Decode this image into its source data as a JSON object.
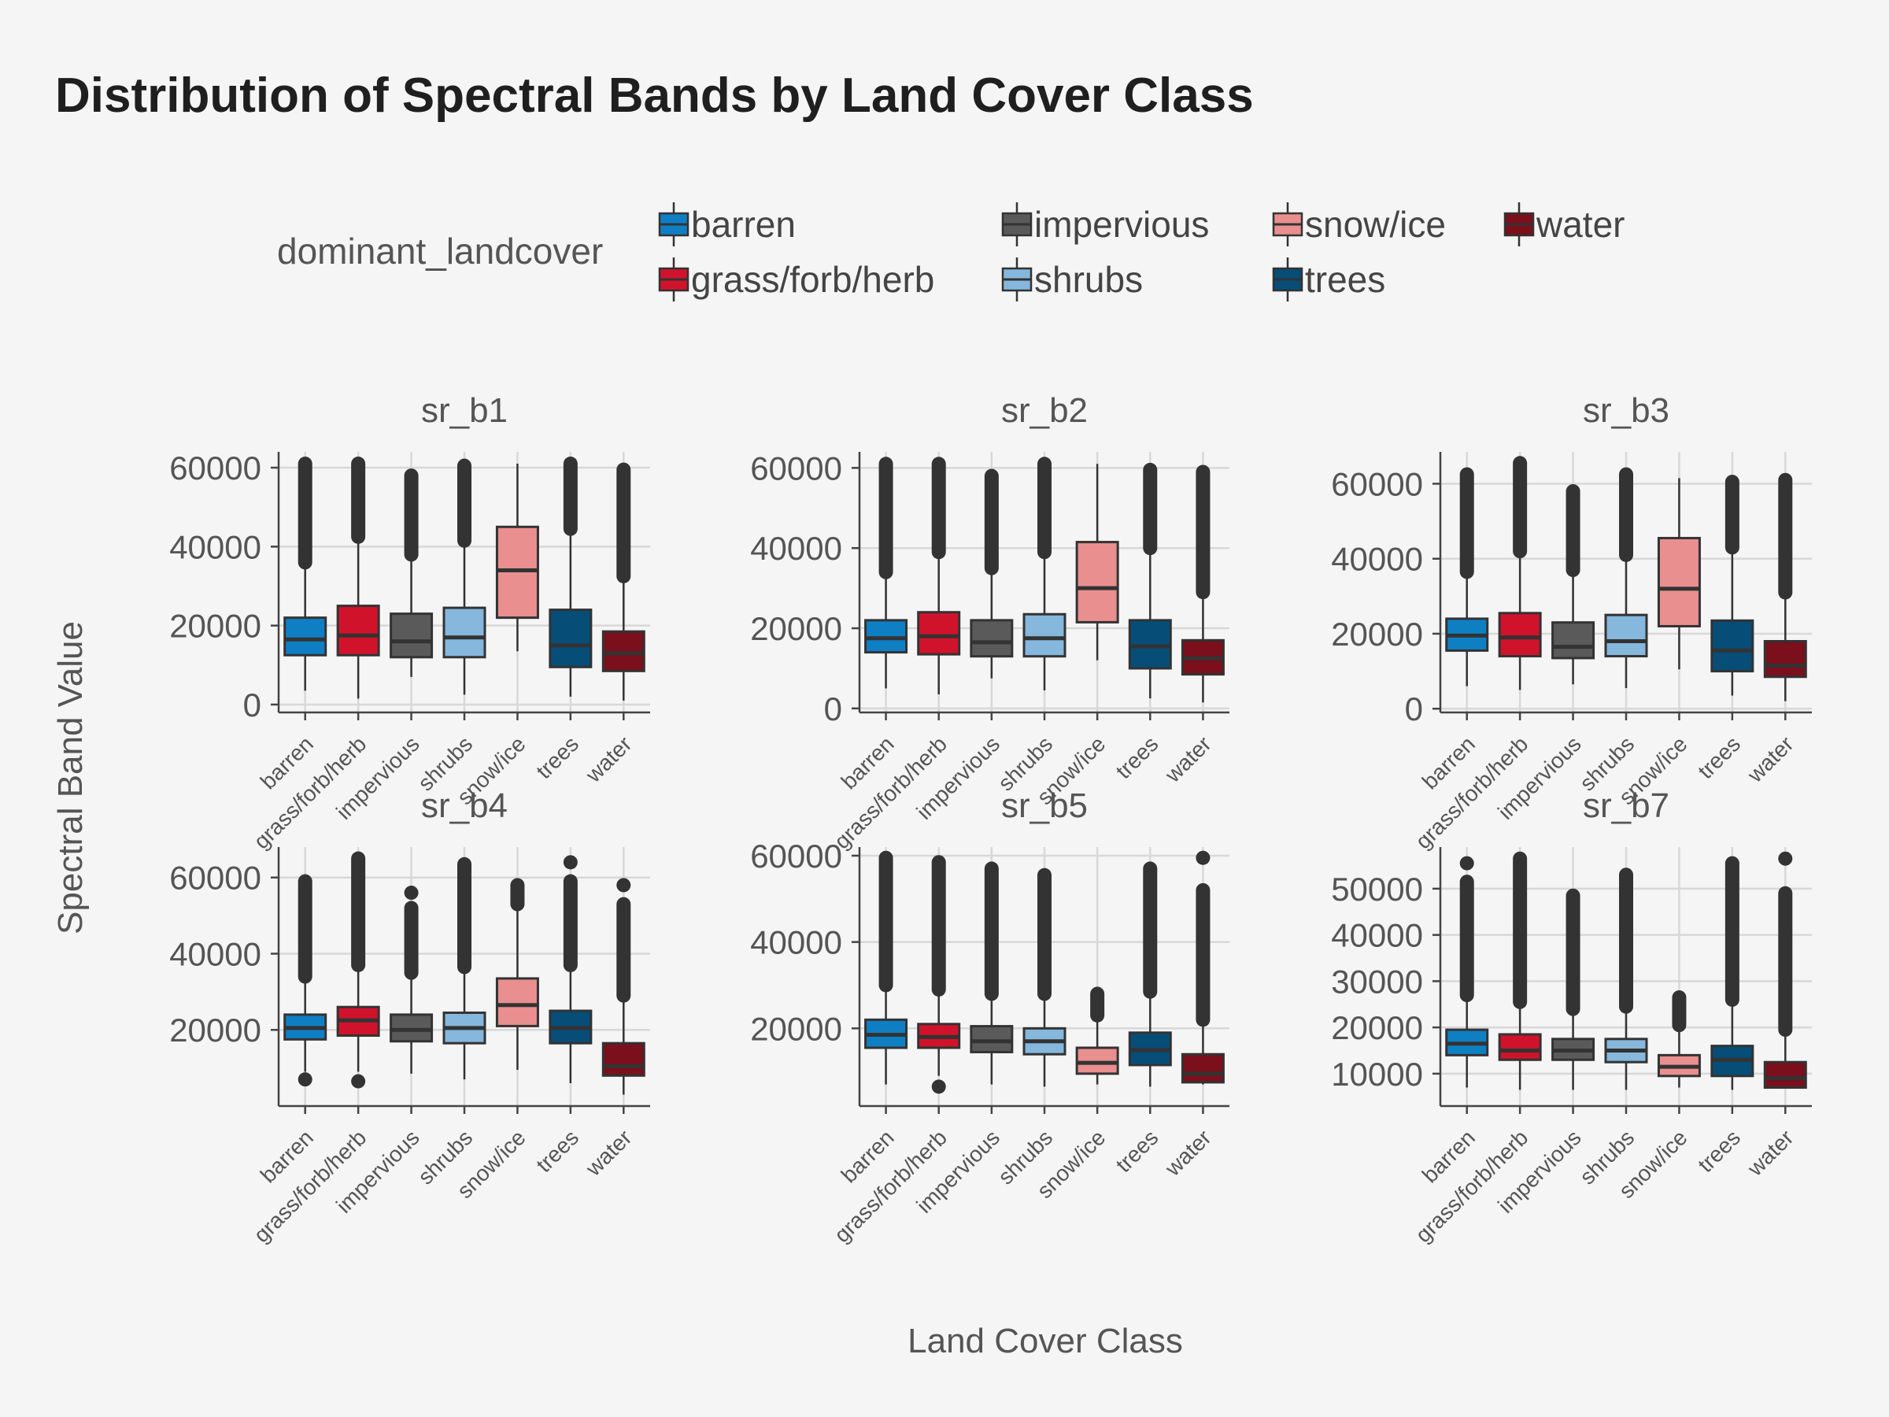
{
  "chart_data": {
    "type": "box",
    "title": "Distribution of Spectral Bands by Land Cover Class",
    "xlabel": "Land Cover Class",
    "ylabel": "Spectral Band Value",
    "legend": {
      "title": "dominant_landcover",
      "position": "top",
      "entries": [
        {
          "name": "barren",
          "color": "#0f7fc4"
        },
        {
          "name": "grass/forb/herb",
          "color": "#d0132b"
        },
        {
          "name": "impervious",
          "color": "#5a5a5a"
        },
        {
          "name": "shrubs",
          "color": "#86b7dc"
        },
        {
          "name": "snow/ice",
          "color": "#e98f8f"
        },
        {
          "name": "trees",
          "color": "#064d78"
        },
        {
          "name": "water",
          "color": "#7b0f1c"
        }
      ]
    },
    "categories": [
      "barren",
      "grass/forb/herb",
      "impervious",
      "shrubs",
      "snow/ice",
      "trees",
      "water"
    ],
    "grid": true,
    "panels": [
      {
        "name": "sr_b1",
        "ylim": [
          -2000,
          64000
        ],
        "yticks": [
          0,
          20000,
          40000,
          60000
        ],
        "boxes": [
          {
            "category": "barren",
            "whislo": 3500,
            "q1": 12500,
            "median": 16500,
            "q3": 22000,
            "whishi": 36000,
            "outlier_range": [
              36000,
              61000
            ]
          },
          {
            "category": "grass/forb/herb",
            "whislo": 1500,
            "q1": 12500,
            "median": 17500,
            "q3": 25000,
            "whishi": 42500,
            "outlier_range": [
              42500,
              61000
            ]
          },
          {
            "category": "impervious",
            "whislo": 7000,
            "q1": 12000,
            "median": 16000,
            "q3": 23000,
            "whishi": 38000,
            "outlier_range": [
              38000,
              58000
            ]
          },
          {
            "category": "shrubs",
            "whislo": 2500,
            "q1": 12000,
            "median": 17000,
            "q3": 24500,
            "whishi": 41500,
            "outlier_range": [
              41500,
              60500
            ]
          },
          {
            "category": "snow/ice",
            "whislo": 13500,
            "q1": 22000,
            "median": 34000,
            "q3": 45000,
            "whishi": 61000,
            "outlier_range": null
          },
          {
            "category": "trees",
            "whislo": 2000,
            "q1": 9500,
            "median": 15000,
            "q3": 24000,
            "whishi": 44500,
            "outlier_range": [
              44500,
              61000
            ]
          },
          {
            "category": "water",
            "whislo": 1000,
            "q1": 8500,
            "median": 13000,
            "q3": 18500,
            "whishi": 32500,
            "outlier_range": [
              32500,
              59500
            ]
          }
        ]
      },
      {
        "name": "sr_b2",
        "ylim": [
          -1000,
          64000
        ],
        "yticks": [
          0,
          20000,
          40000,
          60000
        ],
        "boxes": [
          {
            "category": "barren",
            "whislo": 5000,
            "q1": 14000,
            "median": 17500,
            "q3": 22000,
            "whishi": 34000,
            "outlier_range": [
              34000,
              61000
            ]
          },
          {
            "category": "grass/forb/herb",
            "whislo": 3500,
            "q1": 13500,
            "median": 18000,
            "q3": 24000,
            "whishi": 39000,
            "outlier_range": [
              39000,
              61000
            ]
          },
          {
            "category": "impervious",
            "whislo": 7500,
            "q1": 13000,
            "median": 16500,
            "q3": 22000,
            "whishi": 35000,
            "outlier_range": [
              35000,
              58000
            ]
          },
          {
            "category": "shrubs",
            "whislo": 4500,
            "q1": 13000,
            "median": 17500,
            "q3": 23500,
            "whishi": 39000,
            "outlier_range": [
              39000,
              61000
            ]
          },
          {
            "category": "snow/ice",
            "whislo": 12000,
            "q1": 21500,
            "median": 30000,
            "q3": 41500,
            "whishi": 61000,
            "outlier_range": null
          },
          {
            "category": "trees",
            "whislo": 2500,
            "q1": 10000,
            "median": 15500,
            "q3": 22000,
            "whishi": 40000,
            "outlier_range": [
              40000,
              59500
            ]
          },
          {
            "category": "water",
            "whislo": 1500,
            "q1": 8500,
            "median": 12500,
            "q3": 17000,
            "whishi": 29000,
            "outlier_range": [
              29000,
              59000
            ]
          }
        ]
      },
      {
        "name": "sr_b3",
        "ylim": [
          -1000,
          68500
        ],
        "yticks": [
          0,
          20000,
          40000,
          60000
        ],
        "boxes": [
          {
            "category": "barren",
            "whislo": 6000,
            "q1": 15500,
            "median": 19500,
            "q3": 24000,
            "whishi": 36500,
            "outlier_range": [
              36500,
              62500
            ]
          },
          {
            "category": "grass/forb/herb",
            "whislo": 5000,
            "q1": 14000,
            "median": 19000,
            "q3": 25500,
            "whishi": 42000,
            "outlier_range": [
              42000,
              65500
            ]
          },
          {
            "category": "impervious",
            "whislo": 6500,
            "q1": 13500,
            "median": 16500,
            "q3": 23000,
            "whishi": 37000,
            "outlier_range": [
              37000,
              58000
            ]
          },
          {
            "category": "shrubs",
            "whislo": 5500,
            "q1": 14000,
            "median": 18000,
            "q3": 25000,
            "whishi": 41000,
            "outlier_range": [
              41000,
              62500
            ]
          },
          {
            "category": "snow/ice",
            "whislo": 10500,
            "q1": 22000,
            "median": 32000,
            "q3": 45500,
            "whishi": 61500,
            "outlier_range": null
          },
          {
            "category": "trees",
            "whislo": 3500,
            "q1": 10000,
            "median": 15500,
            "q3": 23500,
            "whishi": 43000,
            "outlier_range": [
              43000,
              60500
            ]
          },
          {
            "category": "water",
            "whislo": 2000,
            "q1": 8500,
            "median": 11500,
            "q3": 18000,
            "whishi": 31000,
            "outlier_range": [
              31000,
              61000
            ]
          }
        ]
      },
      {
        "name": "sr_b4",
        "ylim": [
          0,
          68000
        ],
        "yticks": [
          20000,
          40000,
          60000
        ],
        "boxes": [
          {
            "category": "barren",
            "whislo": 9000,
            "q1": 17500,
            "median": 20500,
            "q3": 24000,
            "whishi": 34000,
            "outlier_range": [
              34000,
              59000
            ],
            "low_outlier": 7000
          },
          {
            "category": "grass/forb/herb",
            "whislo": 9000,
            "q1": 18500,
            "median": 22500,
            "q3": 26000,
            "whishi": 37000,
            "outlier_range": [
              37000,
              65000
            ],
            "low_outlier": 6500
          },
          {
            "category": "impervious",
            "whislo": 8500,
            "q1": 17000,
            "median": 20000,
            "q3": 24000,
            "whishi": 35000,
            "outlier_range": [
              35000,
              52000
            ],
            "high_outlier": 56000
          },
          {
            "category": "shrubs",
            "whislo": 7000,
            "q1": 16500,
            "median": 20500,
            "q3": 24500,
            "whishi": 36500,
            "outlier_range": [
              36500,
              63500
            ]
          },
          {
            "category": "snow/ice",
            "whislo": 9500,
            "q1": 21000,
            "median": 26500,
            "q3": 33500,
            "whishi": 53000,
            "outlier_range": [
              53000,
              58000
            ]
          },
          {
            "category": "trees",
            "whislo": 6000,
            "q1": 16500,
            "median": 20500,
            "q3": 25000,
            "whishi": 37000,
            "outlier_range": [
              37000,
              59000
            ],
            "high_outlier": 64000
          },
          {
            "category": "water",
            "whislo": 3000,
            "q1": 8000,
            "median": 10500,
            "q3": 16500,
            "whishi": 29000,
            "outlier_range": [
              29000,
              53000
            ],
            "high_outlier": 58000
          }
        ]
      },
      {
        "name": "sr_b5",
        "ylim": [
          2000,
          62000
        ],
        "yticks": [
          20000,
          40000,
          60000
        ],
        "boxes": [
          {
            "category": "barren",
            "whislo": 7000,
            "q1": 15500,
            "median": 18500,
            "q3": 22000,
            "whishi": 30000,
            "outlier_range": [
              30000,
              59500
            ]
          },
          {
            "category": "grass/forb/herb",
            "whislo": 9000,
            "q1": 15500,
            "median": 18000,
            "q3": 21000,
            "whishi": 29000,
            "outlier_range": [
              29000,
              58500
            ],
            "low_outlier": 6500
          },
          {
            "category": "impervious",
            "whislo": 7000,
            "q1": 14500,
            "median": 17000,
            "q3": 20500,
            "whishi": 28000,
            "outlier_range": [
              28000,
              57000
            ]
          },
          {
            "category": "shrubs",
            "whislo": 6500,
            "q1": 14000,
            "median": 17000,
            "q3": 20000,
            "whishi": 28000,
            "outlier_range": [
              28000,
              55500
            ]
          },
          {
            "category": "snow/ice",
            "whislo": 7000,
            "q1": 9500,
            "median": 12000,
            "q3": 15500,
            "whishi": 23000,
            "outlier_range": [
              23000,
              28000
            ]
          },
          {
            "category": "trees",
            "whislo": 6500,
            "q1": 11500,
            "median": 15000,
            "q3": 19000,
            "whishi": 28500,
            "outlier_range": [
              28500,
              57000
            ]
          },
          {
            "category": "water",
            "whislo": 7000,
            "q1": 7500,
            "median": 9500,
            "q3": 14000,
            "whishi": 22000,
            "outlier_range": [
              22000,
              52000
            ],
            "high_outlier": 59500
          }
        ]
      },
      {
        "name": "sr_b7",
        "ylim": [
          3000,
          59000
        ],
        "yticks": [
          10000,
          20000,
          30000,
          40000,
          50000
        ],
        "boxes": [
          {
            "category": "barren",
            "whislo": 7000,
            "q1": 14000,
            "median": 16500,
            "q3": 19500,
            "whishi": 27000,
            "outlier_range": [
              27000,
              51500
            ],
            "high_outlier": 55500
          },
          {
            "category": "grass/forb/herb",
            "whislo": 6500,
            "q1": 13000,
            "median": 15000,
            "q3": 18500,
            "whishi": 25500,
            "outlier_range": [
              25500,
              56500
            ]
          },
          {
            "category": "impervious",
            "whislo": 6500,
            "q1": 13000,
            "median": 15000,
            "q3": 17500,
            "whishi": 24000,
            "outlier_range": [
              24000,
              48500
            ]
          },
          {
            "category": "shrubs",
            "whislo": 6500,
            "q1": 12500,
            "median": 15000,
            "q3": 17500,
            "whishi": 24500,
            "outlier_range": [
              24500,
              53000
            ]
          },
          {
            "category": "snow/ice",
            "whislo": 7000,
            "q1": 9500,
            "median": 11500,
            "q3": 14000,
            "whishi": 20500,
            "outlier_range": [
              20500,
              26500
            ]
          },
          {
            "category": "trees",
            "whislo": 6500,
            "q1": 9500,
            "median": 13000,
            "q3": 16000,
            "whishi": 26000,
            "outlier_range": [
              26000,
              55500
            ]
          },
          {
            "category": "water",
            "whislo": 7000,
            "q1": 7000,
            "median": 9000,
            "q3": 12500,
            "whishi": 19500,
            "outlier_range": [
              19500,
              49000
            ],
            "high_outlier": 56500
          }
        ]
      }
    ]
  }
}
